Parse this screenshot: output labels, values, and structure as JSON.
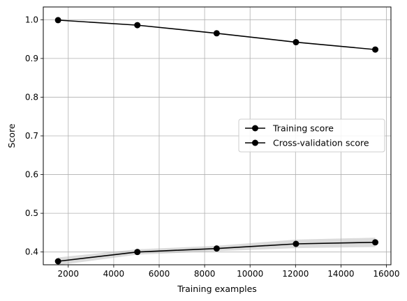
{
  "chart_data": {
    "type": "line",
    "title": "",
    "xlabel": "Training examples",
    "ylabel": "Score",
    "xlim": [
      900,
      16200
    ],
    "ylim": [
      0.367,
      1.033
    ],
    "xticks": [
      2000,
      4000,
      6000,
      8000,
      10000,
      12000,
      14000,
      16000
    ],
    "yticks": [
      0.4,
      0.5,
      0.6,
      0.7,
      0.8,
      0.9,
      1.0
    ],
    "ytick_labels": [
      "0.4",
      "0.5",
      "0.6",
      "0.7",
      "0.8",
      "0.9",
      "1.0"
    ],
    "grid": true,
    "legend": "center-right",
    "x": [
      1550,
      5040,
      8530,
      12020,
      15510
    ],
    "series": [
      {
        "name": "Training score",
        "values": [
          0.999,
          0.986,
          0.965,
          0.942,
          0.923
        ],
        "band_low": [
          0.999,
          0.986,
          0.965,
          0.942,
          0.923
        ],
        "band_high": [
          0.999,
          0.986,
          0.965,
          0.942,
          0.923
        ],
        "color": "#000000",
        "band_color": "#800000"
      },
      {
        "name": "Cross-validation score",
        "values": [
          0.376,
          0.4,
          0.409,
          0.421,
          0.425
        ],
        "band_low": [
          0.366,
          0.393,
          0.402,
          0.41,
          0.413
        ],
        "band_high": [
          0.386,
          0.407,
          0.416,
          0.432,
          0.437
        ],
        "color": "#000000",
        "band_color": "#b0b0b0"
      }
    ]
  }
}
